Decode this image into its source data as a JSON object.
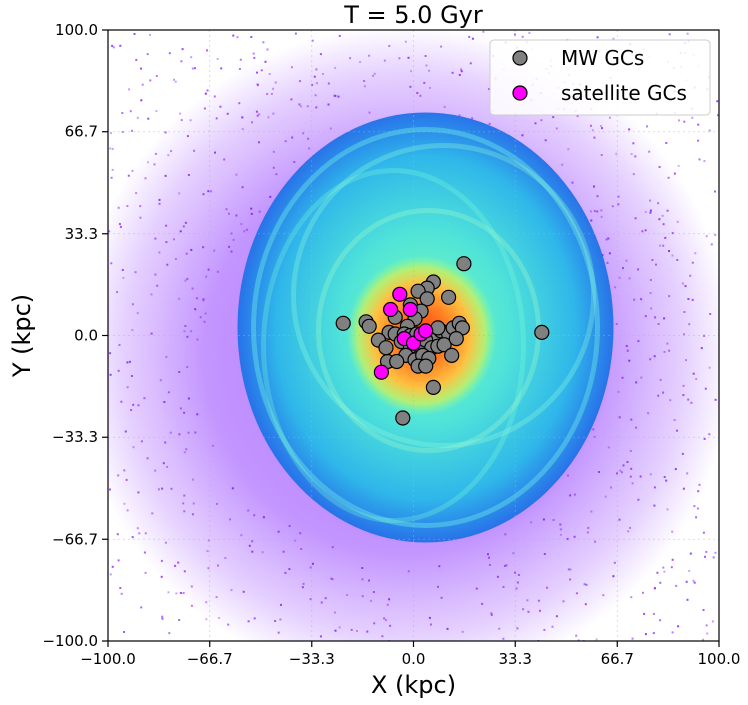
{
  "chart_data": {
    "type": "scatter",
    "title": "T = 5.0 Gyr",
    "xlabel": "X (kpc)",
    "ylabel": "Y (kpc)",
    "xlim": [
      -100.0,
      100.0
    ],
    "ylim": [
      -100.0,
      100.0
    ],
    "xticks": [
      -100.0,
      -66.7,
      -33.3,
      0.0,
      33.3,
      66.7,
      100.0
    ],
    "yticks": [
      -100.0,
      -66.7,
      -33.3,
      0.0,
      33.3,
      66.7,
      100.0
    ],
    "xtick_labels": [
      "−100.0",
      "−66.7",
      "−33.3",
      "0.0",
      "33.3",
      "66.7",
      "100.0"
    ],
    "ytick_labels": [
      "−100.0",
      "−66.7",
      "−33.3",
      "0.0",
      "33.3",
      "66.7",
      "100.0"
    ],
    "grid": true,
    "legend_position": "top-right",
    "background": "particle density map (rainbow colormap: purple outskirts, cyan disk, orange/red core)",
    "series": [
      {
        "name": "MW GCs",
        "color": "#808080",
        "edge_color": "#000000",
        "points": [
          [
            16.5,
            23.5
          ],
          [
            6.5,
            17.5
          ],
          [
            4.5,
            15.5
          ],
          [
            1.5,
            14.5
          ],
          [
            11.5,
            12.5
          ],
          [
            4.5,
            12.0
          ],
          [
            -1.0,
            10.0
          ],
          [
            2.5,
            8.0
          ],
          [
            0.5,
            5.5
          ],
          [
            -2.0,
            3.0
          ],
          [
            -23.0,
            4.0
          ],
          [
            -15.5,
            4.5
          ],
          [
            -14.5,
            3.0
          ],
          [
            -8.0,
            1.0
          ],
          [
            -6.0,
            0.5
          ],
          [
            -3.0,
            0.5
          ],
          [
            -1.0,
            0.0
          ],
          [
            1.0,
            0.5
          ],
          [
            3.0,
            0.0
          ],
          [
            5.0,
            1.0
          ],
          [
            7.0,
            0.5
          ],
          [
            9.0,
            1.5
          ],
          [
            11.5,
            0.5
          ],
          [
            13.0,
            2.5
          ],
          [
            15.0,
            4.0
          ],
          [
            16.0,
            2.5
          ],
          [
            42.0,
            1.0
          ],
          [
            -4.0,
            -2.0
          ],
          [
            -1.0,
            -3.5
          ],
          [
            2.0,
            -3.0
          ],
          [
            4.0,
            -1.5
          ],
          [
            6.0,
            -4.0
          ],
          [
            8.0,
            -3.5
          ],
          [
            10.0,
            -3.0
          ],
          [
            14.0,
            -1.0
          ],
          [
            -2.5,
            -6.5
          ],
          [
            0.5,
            -8.0
          ],
          [
            3.0,
            -6.5
          ],
          [
            5.0,
            -7.5
          ],
          [
            12.5,
            -6.5
          ],
          [
            -8.5,
            -8.5
          ],
          [
            -5.5,
            -8.5
          ],
          [
            -11.5,
            -1.5
          ],
          [
            -9.0,
            -4.0
          ],
          [
            1.5,
            -10.0
          ],
          [
            4.0,
            -10.0
          ],
          [
            6.5,
            -17.0
          ],
          [
            -3.5,
            -27.0
          ],
          [
            8.0,
            2.5
          ],
          [
            -6.0,
            6.0
          ]
        ]
      },
      {
        "name": "satellite GCs",
        "color": "#ff00ff",
        "edge_color": "#000000",
        "points": [
          [
            -4.5,
            13.5
          ],
          [
            -7.5,
            8.5
          ],
          [
            -1.0,
            8.5
          ],
          [
            -3.0,
            -1.0
          ],
          [
            0.0,
            -2.5
          ],
          [
            2.5,
            0.5
          ],
          [
            4.0,
            1.5
          ],
          [
            -10.5,
            -12.0
          ]
        ]
      }
    ]
  }
}
